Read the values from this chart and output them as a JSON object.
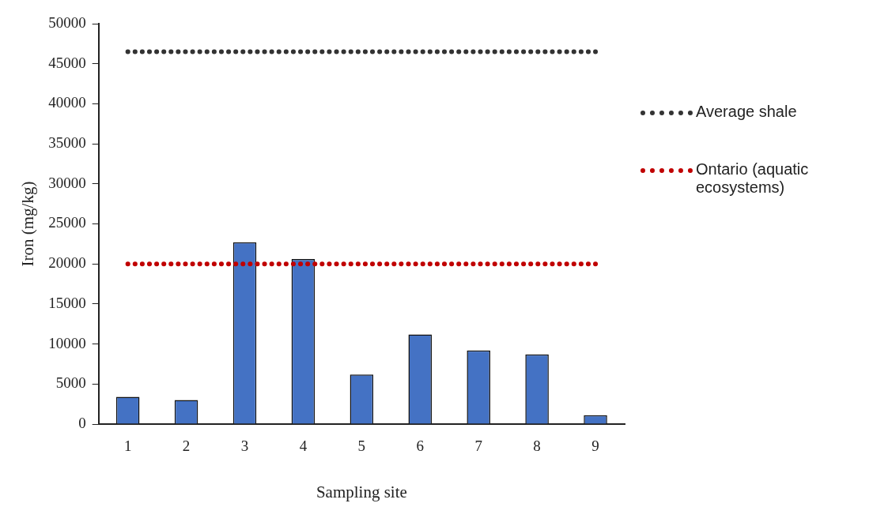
{
  "chart_data": {
    "type": "bar",
    "xlabel": "Sampling site",
    "ylabel": "Iron (mg/kg)",
    "categories": [
      "1",
      "2",
      "3",
      "4",
      "5",
      "6",
      "7",
      "8",
      "9"
    ],
    "series": [
      {
        "color": "#4472c4",
        "values": [
          3400,
          3000,
          22700,
          20600,
          6200,
          11200,
          9200,
          8700,
          1100
        ]
      },
      {
        "type": "line",
        "name": "Average shale",
        "color": "#333333",
        "line_style": "dotted",
        "values": [
          46500,
          46500,
          46500,
          46500,
          46500,
          46500,
          46500,
          46500,
          46500
        ]
      },
      {
        "type": "line",
        "name": "Ontario (aquatic ecosystems)",
        "color": "#c00000",
        "line_style": "dotted",
        "values": [
          20000,
          20000,
          20000,
          20000,
          20000,
          20000,
          20000,
          20000,
          20000
        ]
      }
    ],
    "ylim": [
      0,
      50000
    ],
    "yticks": [
      0,
      5000,
      10000,
      15000,
      20000,
      25000,
      30000,
      35000,
      40000,
      45000,
      50000
    ],
    "grid": false,
    "legend": "right",
    "marker": "none"
  }
}
